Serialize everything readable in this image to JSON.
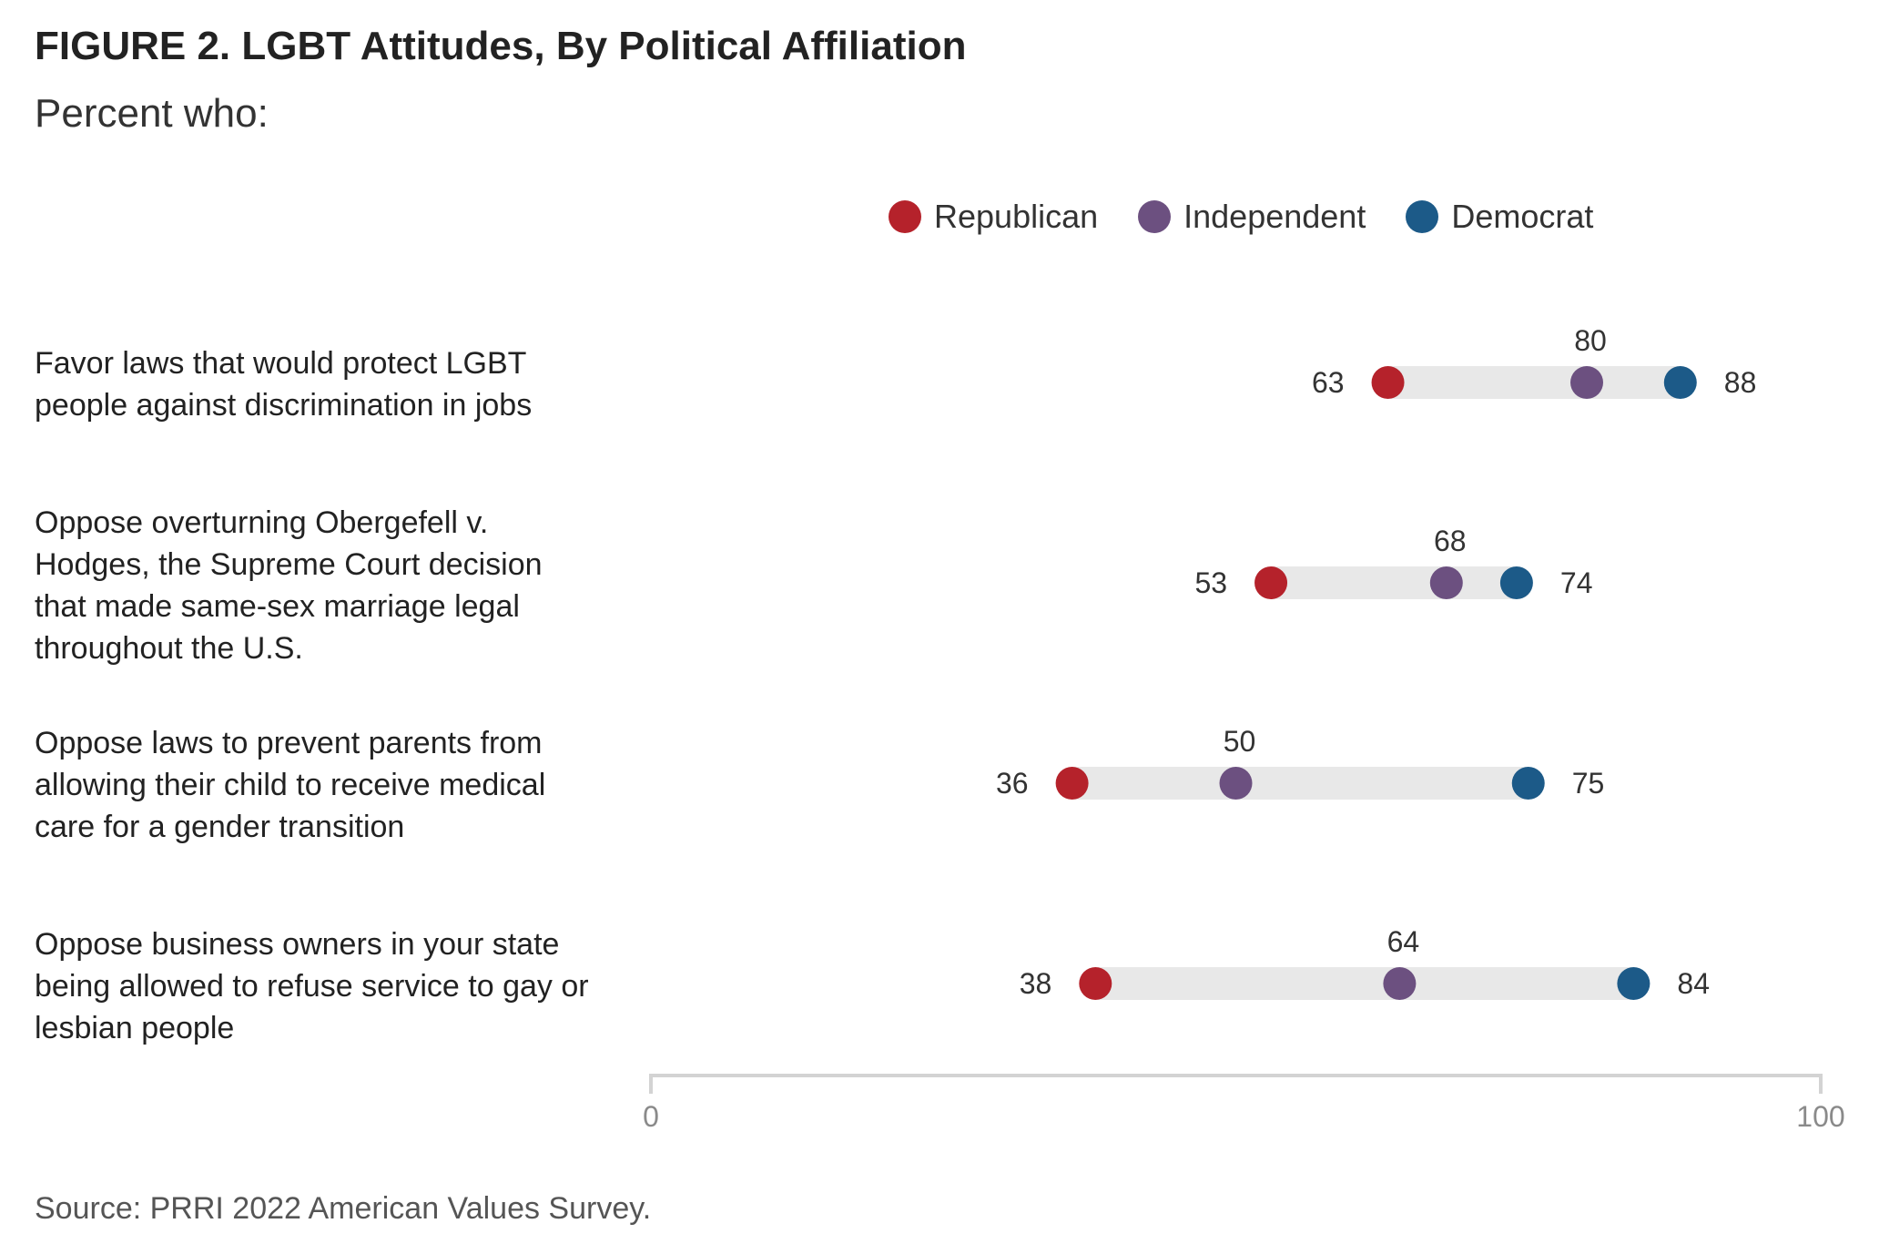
{
  "header": {
    "title": "FIGURE 2.  LGBT Attitudes, By Political Affiliation",
    "subtitle": "Percent who:"
  },
  "footer": {
    "source": "Source: PRRI 2022 American Values Survey."
  },
  "colors": {
    "republican": "#b5222b",
    "independent": "#6c5080",
    "democrat": "#1c5a88",
    "range_bar": "#e8e8e8",
    "axis": "#d3d3d3"
  },
  "chart_data": {
    "type": "dot-range",
    "title": "FIGURE 2.  LGBT Attitudes, By Political Affiliation",
    "subtitle": "Percent who:",
    "xlim": [
      0,
      100
    ],
    "x_ticks": [
      0,
      100
    ],
    "x_tick_labels": [
      "0",
      "100"
    ],
    "grid": false,
    "legend_position": "top-right",
    "series": [
      {
        "name": "Republican",
        "color": "#b5222b",
        "values": [
          63,
          53,
          36,
          38
        ]
      },
      {
        "name": "Independent",
        "color": "#6c5080",
        "values": [
          80,
          68,
          50,
          64
        ]
      },
      {
        "name": "Democrat",
        "color": "#1c5a88",
        "values": [
          88,
          74,
          75,
          84
        ]
      }
    ],
    "categories": [
      {
        "label_lines": [
          "Favor laws that would protect LGBT",
          "people against discrimination in jobs"
        ]
      },
      {
        "label_lines": [
          "Oppose overturning Obergefell v.",
          "Hodges, the Supreme Court decision",
          "that made same-sex marriage legal",
          "throughout the U.S."
        ]
      },
      {
        "label_lines": [
          "Oppose laws to prevent parents from",
          "allowing their child to receive medical",
          "care for a gender transition"
        ]
      },
      {
        "label_lines": [
          "Oppose business owners in your state",
          "being allowed to refuse service to gay or",
          "lesbian people"
        ]
      }
    ]
  }
}
